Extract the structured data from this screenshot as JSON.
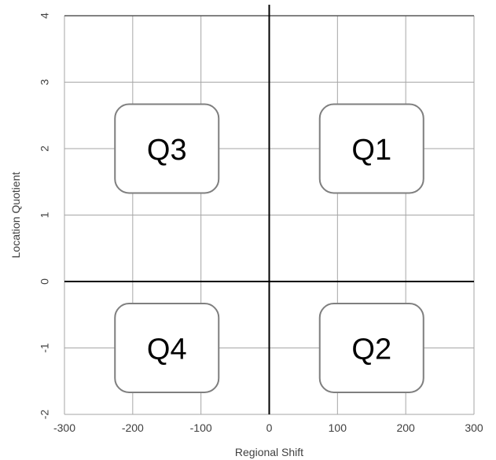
{
  "chart_data": {
    "type": "scatter",
    "title": "",
    "xlabel": "Regional Shift",
    "ylabel": "Location Quotient",
    "xlim": [
      -300,
      300
    ],
    "ylim": [
      -2,
      4
    ],
    "xticks": [
      "-300",
      "-200",
      "-100",
      "0",
      "100",
      "200",
      "300"
    ],
    "yticks": [
      "-2",
      "-1",
      "0",
      "1",
      "2",
      "3",
      "4"
    ],
    "grid": true,
    "quadrants": [
      {
        "label": "Q3",
        "x": -150,
        "y": 2
      },
      {
        "label": "Q1",
        "x": 150,
        "y": 2
      },
      {
        "label": "Q4",
        "x": -150,
        "y": -1
      },
      {
        "label": "Q2",
        "x": 150,
        "y": -1
      }
    ],
    "colors": {
      "grid": "#a6a6a6",
      "axis": "#000000",
      "box_border": "#7f7f7f",
      "text": "#404040"
    }
  }
}
